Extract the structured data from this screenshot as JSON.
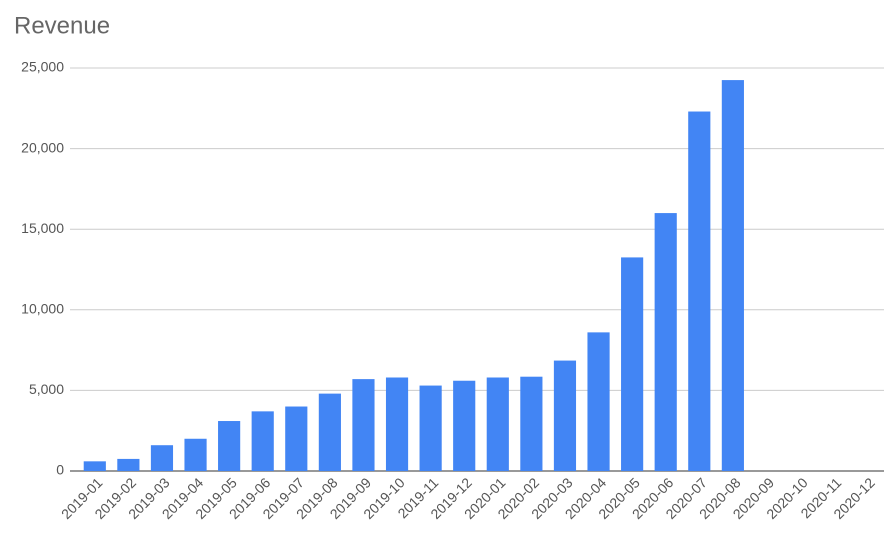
{
  "chart_data": {
    "type": "bar",
    "title": "Revenue",
    "categories": [
      "2019-01",
      "2019-02",
      "2019-03",
      "2019-04",
      "2019-05",
      "2019-06",
      "2019-07",
      "2019-08",
      "2019-09",
      "2019-10",
      "2019-11",
      "2019-12",
      "2020-01",
      "2020-02",
      "2020-03",
      "2020-04",
      "2020-05",
      "2020-06",
      "2020-07",
      "2020-08",
      "2020-09",
      "2020-10",
      "2020-11",
      "2020-12"
    ],
    "values": [
      600,
      750,
      1600,
      2000,
      3100,
      3700,
      4000,
      4800,
      5700,
      5800,
      5300,
      5600,
      5800,
      5850,
      6850,
      8600,
      13250,
      16000,
      22300,
      24250,
      null,
      null,
      null,
      null
    ],
    "color": "#4285f4",
    "ylim": [
      0,
      25000
    ],
    "yticks": [
      0,
      {
        "value": 5000,
        "label": "5,000"
      },
      {
        "value": 10000,
        "label": "10,000"
      },
      {
        "value": 15000,
        "label": "15,000"
      },
      {
        "value": 20000,
        "label": "20,000"
      },
      {
        "value": 25000,
        "label": "25,000"
      }
    ],
    "grid": true
  }
}
